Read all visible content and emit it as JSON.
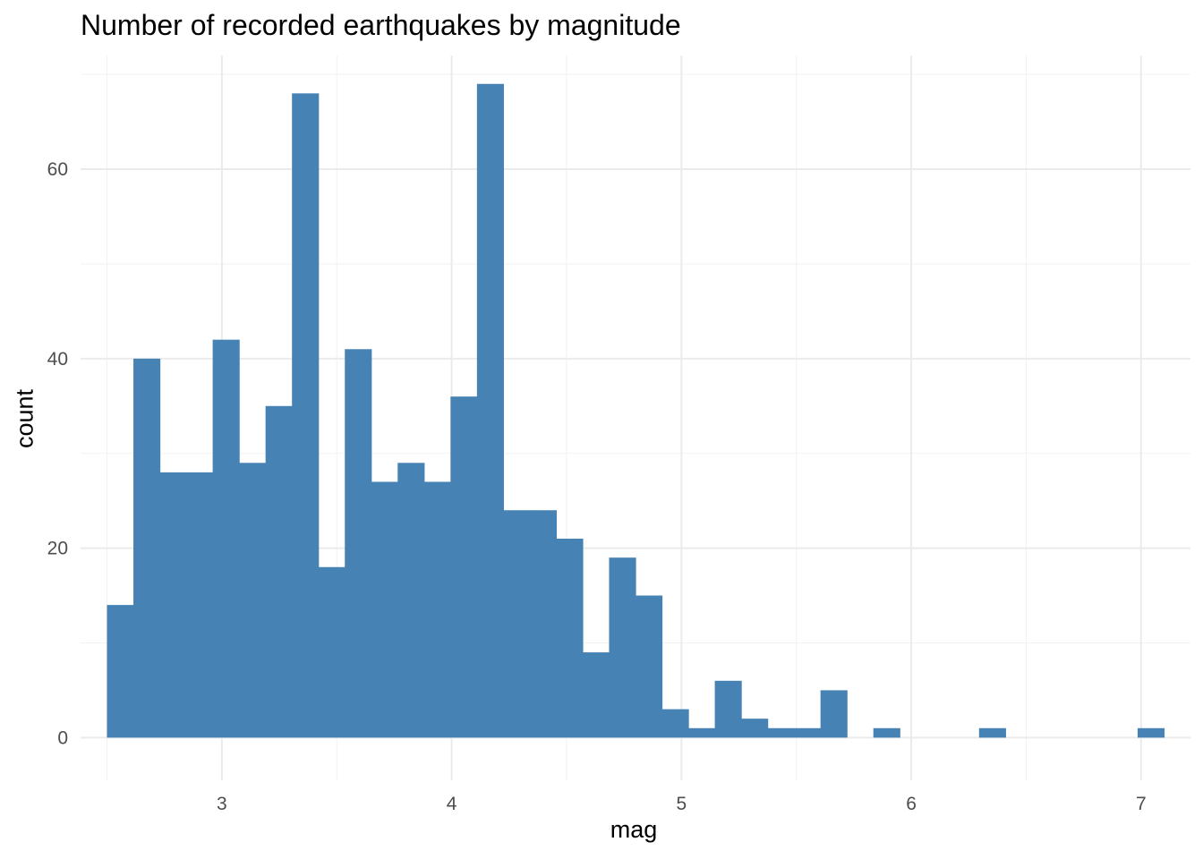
{
  "chart_data": {
    "type": "bar",
    "title": "Number of recorded earthquakes by magnitude",
    "xlabel": "mag",
    "ylabel": "count",
    "bar_color": "#4682b4",
    "grid": true,
    "bin_width": 0.115,
    "bins": [
      {
        "x_start": 2.5,
        "count": 14
      },
      {
        "x_start": 2.615,
        "count": 40
      },
      {
        "x_start": 2.73,
        "count": 28
      },
      {
        "x_start": 2.845,
        "count": 28
      },
      {
        "x_start": 2.96,
        "count": 42
      },
      {
        "x_start": 3.075,
        "count": 29
      },
      {
        "x_start": 3.19,
        "count": 35
      },
      {
        "x_start": 3.305,
        "count": 68
      },
      {
        "x_start": 3.42,
        "count": 18
      },
      {
        "x_start": 3.535,
        "count": 41
      },
      {
        "x_start": 3.65,
        "count": 27
      },
      {
        "x_start": 3.765,
        "count": 29
      },
      {
        "x_start": 3.88,
        "count": 27
      },
      {
        "x_start": 3.995,
        "count": 36
      },
      {
        "x_start": 4.11,
        "count": 69
      },
      {
        "x_start": 4.225,
        "count": 24
      },
      {
        "x_start": 4.34,
        "count": 24
      },
      {
        "x_start": 4.455,
        "count": 21
      },
      {
        "x_start": 4.57,
        "count": 9
      },
      {
        "x_start": 4.685,
        "count": 19
      },
      {
        "x_start": 4.8,
        "count": 15
      },
      {
        "x_start": 4.915,
        "count": 3
      },
      {
        "x_start": 5.03,
        "count": 1
      },
      {
        "x_start": 5.145,
        "count": 6
      },
      {
        "x_start": 5.26,
        "count": 2
      },
      {
        "x_start": 5.375,
        "count": 1
      },
      {
        "x_start": 5.49,
        "count": 1
      },
      {
        "x_start": 5.605,
        "count": 5
      },
      {
        "x_start": 5.72,
        "count": 0
      },
      {
        "x_start": 5.835,
        "count": 1
      },
      {
        "x_start": 5.95,
        "count": 0
      },
      {
        "x_start": 6.065,
        "count": 0
      },
      {
        "x_start": 6.18,
        "count": 0
      },
      {
        "x_start": 6.295,
        "count": 1
      },
      {
        "x_start": 6.41,
        "count": 0
      },
      {
        "x_start": 6.525,
        "count": 0
      },
      {
        "x_start": 6.64,
        "count": 0
      },
      {
        "x_start": 6.755,
        "count": 0
      },
      {
        "x_start": 6.87,
        "count": 0
      },
      {
        "x_start": 6.985,
        "count": 1
      }
    ],
    "x_ticks": [
      {
        "value": 3,
        "label": "3"
      },
      {
        "value": 4,
        "label": "4"
      },
      {
        "value": 5,
        "label": "5"
      },
      {
        "value": 6,
        "label": "6"
      },
      {
        "value": 7,
        "label": "7"
      }
    ],
    "y_ticks": [
      {
        "value": 0,
        "label": "0"
      },
      {
        "value": 20,
        "label": "20"
      },
      {
        "value": 40,
        "label": "40"
      },
      {
        "value": 60,
        "label": "60"
      }
    ],
    "xlim": [
      2.385,
      7.215
    ],
    "ylim": [
      -4.5,
      72
    ]
  }
}
